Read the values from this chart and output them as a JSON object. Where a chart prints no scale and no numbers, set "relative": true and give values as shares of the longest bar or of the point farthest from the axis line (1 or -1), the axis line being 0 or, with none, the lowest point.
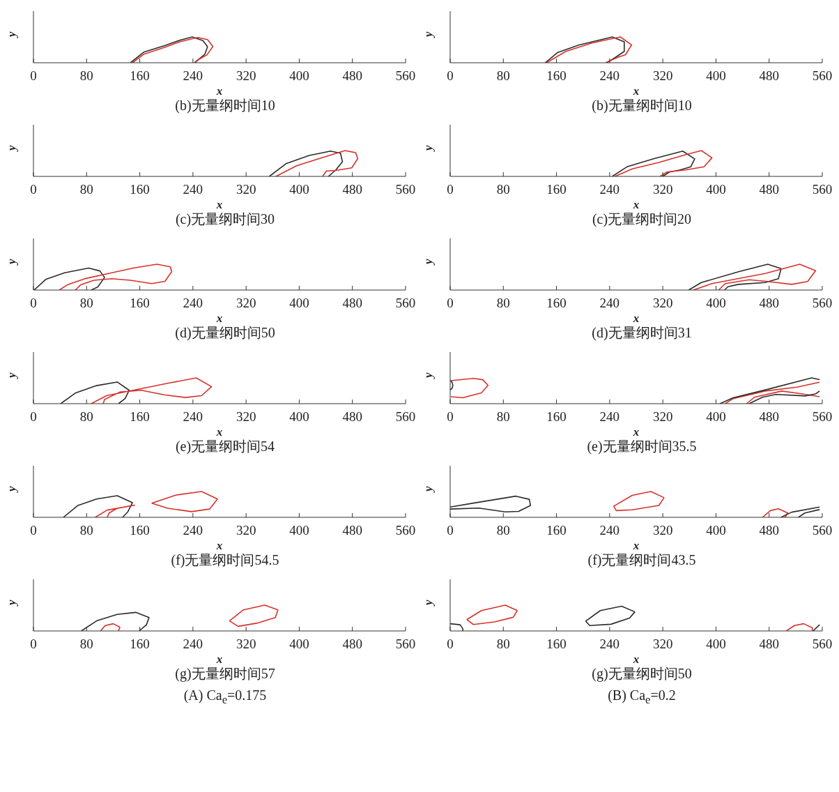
{
  "chart_data": [
    {
      "type": "line",
      "title": "(b)无量纲时间10",
      "xlabel": "x",
      "ylabel": "y",
      "xlim": [
        0,
        560
      ],
      "xticks": [
        0,
        80,
        160,
        240,
        320,
        400,
        480,
        560
      ],
      "relative": true,
      "tick_labels": "x",
      "series": [
        {
          "color": "#2b2b2b",
          "x": [
            146,
            166,
            198,
            221,
            239,
            255,
            262,
            258,
            242
          ],
          "values": [
            0,
            0.41,
            0.67,
            0.88,
            1.0,
            0.86,
            0.62,
            0.33,
            0
          ]
        },
        {
          "color": "#d7312b",
          "x": [
            149,
            166,
            198,
            221,
            247,
            262,
            270,
            261,
            250,
            243
          ],
          "values": [
            0,
            0.33,
            0.6,
            0.82,
            0.98,
            0.9,
            0.63,
            0.3,
            0.15,
            0
          ]
        }
      ]
    },
    {
      "type": "line",
      "title": "(b)无量纲时间10",
      "xlabel": "x",
      "ylabel": "y",
      "xlim": [
        0,
        560
      ],
      "xticks": [
        0,
        80,
        160,
        240,
        320,
        400,
        480,
        560
      ],
      "relative": true,
      "tick_labels": "x",
      "series": [
        {
          "color": "#2b2b2b",
          "x": [
            143,
            162,
            194,
            244,
            262,
            262,
            250,
            236
          ],
          "values": [
            0,
            0.4,
            0.69,
            1.0,
            0.81,
            0.44,
            0.23,
            0
          ]
        },
        {
          "color": "#d7312b",
          "x": [
            145,
            174,
            214,
            256,
            273,
            264,
            252,
            234
          ],
          "values": [
            0,
            0.44,
            0.77,
            1.0,
            0.69,
            0.31,
            0.21,
            0
          ]
        }
      ]
    },
    {
      "type": "line",
      "title": "(c)无量纲时间30",
      "xlabel": "x",
      "ylabel": "y",
      "xlim": [
        0,
        560
      ],
      "xticks": [
        0,
        80,
        160,
        240,
        320,
        400,
        480,
        560
      ],
      "relative": true,
      "tick_labels": "x",
      "series": [
        {
          "color": "#2b2b2b",
          "x": [
            355,
            380,
            415,
            447,
            462,
            465,
            455,
            444
          ],
          "values": [
            0,
            0.49,
            0.81,
            0.98,
            0.9,
            0.57,
            0.25,
            0
          ]
        },
        {
          "color": "#d7312b",
          "x": [
            365,
            396,
            435,
            469,
            485,
            488,
            479,
            455,
            441,
            435
          ],
          "values": [
            0,
            0.41,
            0.73,
            1.0,
            0.92,
            0.69,
            0.33,
            0.23,
            0.21,
            0
          ]
        }
      ]
    },
    {
      "type": "line",
      "title": "(c)无量纲时间20",
      "xlabel": "x",
      "ylabel": "y",
      "xlim": [
        0,
        560
      ],
      "xticks": [
        0,
        80,
        160,
        240,
        320,
        400,
        480,
        560
      ],
      "relative": true,
      "tick_labels": "x",
      "series": [
        {
          "color": "#2b2b2b",
          "x": [
            244,
            266,
            306,
            350,
            368,
            362,
            346,
            330,
            320
          ],
          "values": [
            0,
            0.37,
            0.68,
            0.98,
            0.68,
            0.37,
            0.25,
            0.17,
            0
          ]
        },
        {
          "color": "#d7312b",
          "x": [
            248,
            274,
            314,
            354,
            378,
            394,
            382,
            354,
            326,
            316
          ],
          "values": [
            0,
            0.29,
            0.54,
            0.84,
            1.0,
            0.72,
            0.37,
            0.25,
            0.17,
            0
          ]
        }
      ]
    },
    {
      "type": "line",
      "title": "(d)无量纲时间50",
      "xlabel": "x",
      "ylabel": "y",
      "xlim": [
        0,
        560
      ],
      "xticks": [
        0,
        80,
        160,
        240,
        320,
        400,
        480,
        560
      ],
      "relative": true,
      "tick_labels": "x",
      "series": [
        {
          "color": "#2b2b2b",
          "x": [
            1,
            19,
            47,
            83,
            100,
            107,
            97,
            87
          ],
          "values": [
            0,
            0.42,
            0.67,
            0.85,
            0.74,
            0.49,
            0.12,
            0
          ]
        },
        {
          "color": "#d7312b",
          "x": [
            39,
            51,
            79,
            118,
            150,
            186,
            206,
            208,
            198,
            178,
            146,
            118,
            91,
            71,
            63
          ],
          "values": [
            0,
            0.2,
            0.45,
            0.67,
            0.85,
            1.0,
            0.9,
            0.71,
            0.34,
            0.25,
            0.38,
            0.44,
            0.38,
            0.2,
            0
          ]
        }
      ]
    },
    {
      "type": "line",
      "title": "(d)无量纲时间31",
      "xlabel": "x",
      "ylabel": "y",
      "xlim": [
        0,
        560
      ],
      "xticks": [
        0,
        80,
        160,
        240,
        320,
        400,
        480,
        560
      ],
      "relative": true,
      "tick_labels": "x",
      "series": [
        {
          "color": "#2b2b2b",
          "x": [
            359,
            378,
            434,
            478,
            498,
            494,
            474,
            434,
            418,
            413
          ],
          "values": [
            0,
            0.29,
            0.71,
            1.0,
            0.83,
            0.44,
            0.29,
            0.22,
            0.13,
            0
          ]
        },
        {
          "color": "#d7312b",
          "x": [
            366,
            394,
            474,
            526,
            550,
            538,
            514,
            478,
            450,
            414,
            404
          ],
          "values": [
            0,
            0.25,
            0.64,
            1.0,
            0.75,
            0.33,
            0.22,
            0.33,
            0.4,
            0.25,
            0
          ]
        }
      ]
    },
    {
      "type": "line",
      "title": "(e)无量纲时间54",
      "xlabel": "x",
      "ylabel": "y",
      "xlim": [
        0,
        560
      ],
      "xticks": [
        0,
        80,
        160,
        240,
        320,
        400,
        480,
        560
      ],
      "relative": true,
      "tick_labels": "x",
      "series": [
        {
          "color": "#2b2b2b",
          "x": [
            41,
            63,
            95,
            126,
            144,
            138,
            128
          ],
          "values": [
            0,
            0.41,
            0.7,
            0.84,
            0.52,
            0.2,
            0
          ]
        },
        {
          "color": "#d7312b",
          "x": [
            87,
            110,
            158,
            206,
            245,
            268,
            253,
            229,
            198,
            162,
            130,
            107,
            105
          ],
          "values": [
            0,
            0.31,
            0.56,
            0.81,
            1.0,
            0.66,
            0.31,
            0.24,
            0.34,
            0.52,
            0.45,
            0.16,
            0
          ]
        }
      ]
    },
    {
      "type": "line",
      "title": "(e)无量纲时间35.5",
      "xlabel": "x",
      "ylabel": "y",
      "xlim": [
        0,
        560
      ],
      "xticks": [
        0,
        80,
        160,
        240,
        320,
        400,
        480,
        560
      ],
      "relative": true,
      "tick_labels": "x",
      "series": [
        {
          "color": "#d7312b",
          "x": [
            1,
            19,
            47,
            57,
            49,
            35,
            1
          ],
          "values": [
            0.27,
            0.23,
            0.42,
            0.71,
            0.93,
            0.98,
            0.89
          ]
        },
        {
          "color": "#d7312b",
          "x": [
            414,
            426,
            474,
            522,
            556
          ],
          "values": [
            0,
            0.2,
            0.49,
            0.64,
            0.83
          ]
        },
        {
          "color": "#d7312b",
          "x": [
            446,
            458,
            499,
            530,
            556
          ],
          "values": [
            0,
            0.25,
            0.49,
            0.38,
            0.27
          ]
        },
        {
          "color": "#2b2b2b",
          "x": [
            406,
            426,
            474,
            544,
            556
          ],
          "values": [
            0,
            0.23,
            0.53,
            1.0,
            0.93
          ]
        },
        {
          "color": "#2b2b2b",
          "x": [
            450,
            470,
            490,
            534,
            550,
            556
          ],
          "values": [
            0,
            0.25,
            0.36,
            0.3,
            0.38,
            0.49
          ]
        },
        {
          "color": "#2b2b2b",
          "x": [
            0,
            3,
            4,
            3,
            0
          ],
          "values": [
            0.9,
            0.82,
            0.71,
            0.6,
            0.53
          ]
        }
      ]
    },
    {
      "type": "line",
      "title": "(f)无量纲时间54.5",
      "xlabel": "x",
      "ylabel": "y",
      "xlim": [
        0,
        560
      ],
      "xticks": [
        0,
        80,
        160,
        240,
        320,
        400,
        480,
        560
      ],
      "relative": true,
      "tick_labels": "x",
      "series": [
        {
          "color": "#2b2b2b",
          "x": [
            45,
            67,
            95,
            126,
            149,
            142,
            134
          ],
          "values": [
            0,
            0.46,
            0.71,
            0.84,
            0.57,
            0.21,
            0
          ]
        },
        {
          "color": "#d7312b",
          "x": [
            93,
            111,
            152,
            126,
            114,
            111
          ],
          "values": [
            0,
            0.28,
            0.47,
            0.35,
            0.17,
            0
          ]
        },
        {
          "color": "#d7312b",
          "x": [
            178,
            214,
            253,
            277
          ],
          "values": [
            0.55,
            0.86,
            1.0,
            0.71
          ]
        },
        {
          "color": "#d7312b",
          "x": [
            277,
            265,
            238,
            202,
            178
          ],
          "values": [
            0.71,
            0.32,
            0.22,
            0.35,
            0.55
          ]
        }
      ]
    },
    {
      "type": "line",
      "title": "(f)无量纲时间43.5",
      "xlabel": "x",
      "ylabel": "y",
      "xlim": [
        0,
        560
      ],
      "xticks": [
        0,
        80,
        160,
        240,
        320,
        400,
        480,
        560
      ],
      "relative": true,
      "tick_labels": "x",
      "series": [
        {
          "color": "#2b2b2b",
          "x": [
            0,
            35,
            99,
            119,
            121,
            103,
            83,
            43,
            0
          ],
          "values": [
            0.4,
            0.55,
            0.82,
            0.7,
            0.46,
            0.23,
            0.21,
            0.36,
            0.32
          ]
        },
        {
          "color": "#d7312b",
          "x": [
            246,
            274,
            302,
            322
          ],
          "values": [
            0.43,
            0.85,
            1.0,
            0.76
          ]
        },
        {
          "color": "#d7312b",
          "x": [
            322,
            314,
            274,
            250,
            246
          ],
          "values": [
            0.76,
            0.46,
            0.29,
            0.26,
            0.43
          ]
        },
        {
          "color": "#d7312b",
          "x": [
            470,
            482,
            494,
            508,
            504
          ],
          "values": [
            0,
            0.26,
            0.33,
            0.17,
            0
          ]
        },
        {
          "color": "#2b2b2b",
          "x": [
            498,
            514,
            556
          ],
          "values": [
            0,
            0.2,
            0.4
          ]
        },
        {
          "color": "#2b2b2b",
          "x": [
            524,
            534,
            556
          ],
          "values": [
            0,
            0.17,
            0.3
          ]
        }
      ]
    },
    {
      "type": "line",
      "title": "(g)无量纲时间57",
      "xlabel": "x",
      "ylabel": "y",
      "xlim": [
        0,
        560
      ],
      "xticks": [
        0,
        80,
        160,
        240,
        320,
        400,
        480,
        560
      ],
      "relative": true,
      "tick_labels": "x",
      "annotations": [
        "(A) Ca$_{e}$=0.175"
      ],
      "series": [
        {
          "color": "#2b2b2b",
          "x": [
            72,
            95,
            126,
            154,
            174,
            170,
            159
          ],
          "values": [
            0,
            0.39,
            0.64,
            0.72,
            0.52,
            0.24,
            0
          ]
        },
        {
          "color": "#d7312b",
          "x": [
            101,
            108,
            120,
            130,
            128
          ],
          "values": [
            0,
            0.21,
            0.28,
            0.15,
            0
          ]
        },
        {
          "color": "#d7312b",
          "x": [
            295,
            316,
            348,
            368
          ],
          "values": [
            0.39,
            0.82,
            1.0,
            0.82
          ]
        },
        {
          "color": "#d7312b",
          "x": [
            368,
            364,
            336,
            308,
            295
          ],
          "values": [
            0.82,
            0.52,
            0.3,
            0.18,
            0.39
          ]
        }
      ]
    },
    {
      "type": "line",
      "title": "(g)无量纲时间50",
      "xlabel": "x",
      "ylabel": "y",
      "xlim": [
        0,
        560
      ],
      "xticks": [
        0,
        80,
        160,
        240,
        320,
        400,
        480,
        560
      ],
      "relative": true,
      "tick_labels": "x",
      "annotations": [
        "(B) Ca$_{e}$=0.2"
      ],
      "series": [
        {
          "color": "#2b2b2b",
          "x": [
            0,
            15,
            19,
            19
          ],
          "values": [
            0.28,
            0.24,
            0.09,
            0
          ]
        },
        {
          "color": "#d7312b",
          "x": [
            25,
            47,
            83,
            101
          ],
          "values": [
            0.44,
            0.79,
            1.0,
            0.79
          ]
        },
        {
          "color": "#d7312b",
          "x": [
            101,
            95,
            67,
            35,
            25
          ],
          "values": [
            0.79,
            0.53,
            0.35,
            0.25,
            0.44
          ]
        },
        {
          "color": "#2b2b2b",
          "x": [
            204,
            226,
            258,
            278
          ],
          "values": [
            0.38,
            0.79,
            0.96,
            0.74
          ]
        },
        {
          "color": "#2b2b2b",
          "x": [
            278,
            270,
            242,
            210,
            204
          ],
          "values": [
            0.74,
            0.5,
            0.26,
            0.21,
            0.38
          ]
        },
        {
          "color": "#d7312b",
          "x": [
            506,
            518,
            532,
            545,
            545
          ],
          "values": [
            0,
            0.21,
            0.28,
            0.12,
            0
          ]
        },
        {
          "color": "#2b2b2b",
          "x": [
            546,
            556
          ],
          "values": [
            0,
            0.24
          ]
        }
      ]
    }
  ]
}
